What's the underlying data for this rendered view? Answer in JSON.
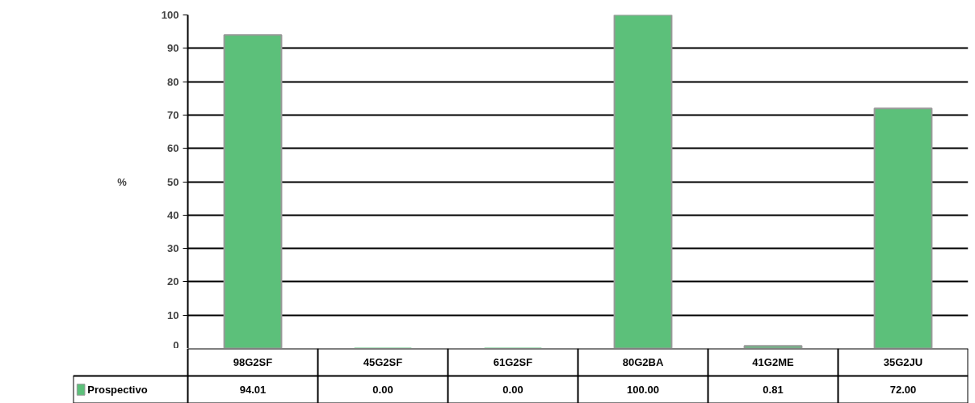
{
  "chart_data": {
    "type": "bar",
    "ylabel": "%",
    "categories": [
      "98G2SF",
      "45G2SF",
      "61G2SF",
      "80G2BA",
      "41G2ME",
      "35G2JU"
    ],
    "series": [
      {
        "name": "Prospectivo",
        "color": "#5cc07a",
        "values": [
          94.01,
          0.0,
          0.0,
          100.0,
          0.81,
          72.0
        ],
        "value_labels": [
          "94.01",
          "0.00",
          "0.00",
          "100.00",
          "0.81",
          "72.00"
        ]
      }
    ],
    "ylim": [
      0,
      100
    ],
    "yticks": [
      0,
      10,
      20,
      30,
      40,
      50,
      60,
      70,
      80,
      90,
      100
    ],
    "grid": "y"
  }
}
